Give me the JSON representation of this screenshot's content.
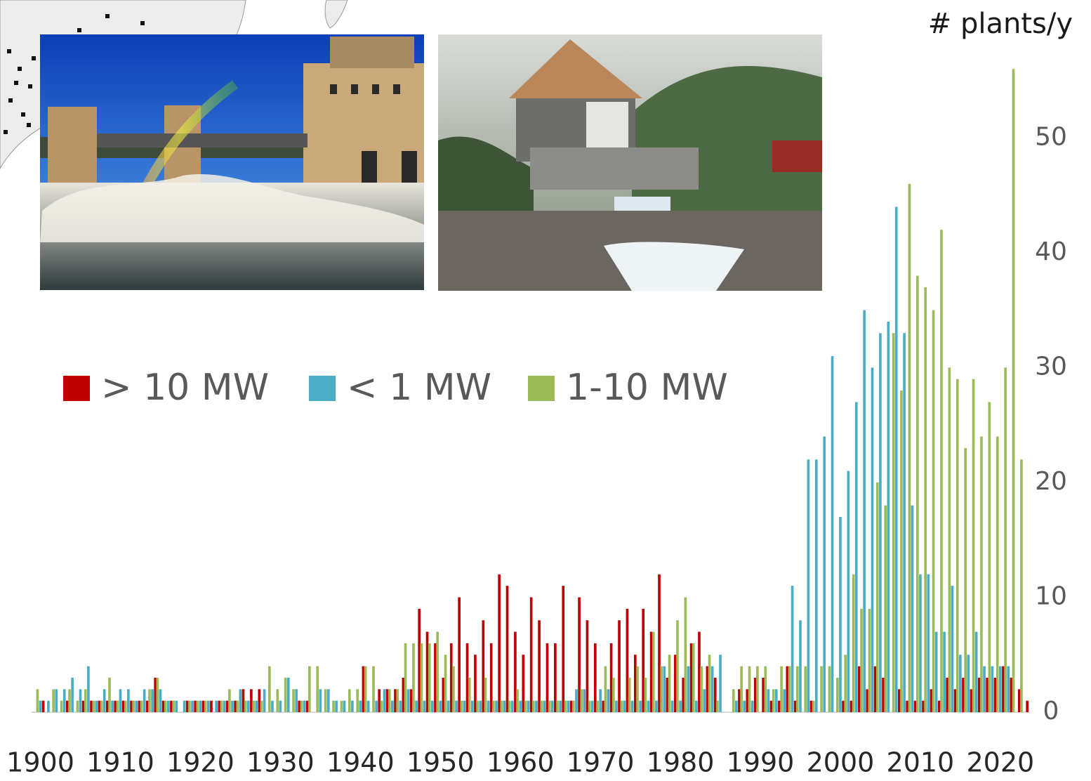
{
  "chart_data": {
    "type": "bar",
    "y_label": "# plants/y",
    "x": [
      1900,
      1901,
      1902,
      1903,
      1904,
      1905,
      1906,
      1907,
      1908,
      1909,
      1910,
      1911,
      1912,
      1913,
      1914,
      1915,
      1916,
      1917,
      1918,
      1919,
      1920,
      1921,
      1922,
      1923,
      1924,
      1925,
      1926,
      1927,
      1928,
      1929,
      1930,
      1931,
      1932,
      1933,
      1934,
      1935,
      1936,
      1937,
      1938,
      1939,
      1940,
      1941,
      1942,
      1943,
      1944,
      1945,
      1946,
      1947,
      1948,
      1949,
      1950,
      1951,
      1952,
      1953,
      1954,
      1955,
      1956,
      1957,
      1958,
      1959,
      1960,
      1961,
      1962,
      1963,
      1964,
      1965,
      1966,
      1967,
      1968,
      1969,
      1970,
      1971,
      1972,
      1973,
      1974,
      1975,
      1976,
      1977,
      1978,
      1979,
      1980,
      1981,
      1982,
      1983,
      1984,
      1985,
      1986,
      1987,
      1988,
      1989,
      1990,
      1991,
      1992,
      1993,
      1994,
      1995,
      1996,
      1997,
      1998,
      1999,
      2000,
      2001,
      2002,
      2003,
      2004,
      2005,
      2006,
      2007,
      2008,
      2009,
      2010,
      2011,
      2012,
      2013,
      2014,
      2015,
      2016,
      2017,
      2018,
      2019,
      2020,
      2021,
      2022,
      2023
    ],
    "series": [
      {
        "name": "> 10 MW",
        "color": "#c00000",
        "values": [
          1,
          0,
          0,
          1,
          0,
          1,
          1,
          1,
          1,
          1,
          1,
          1,
          1,
          1,
          3,
          1,
          1,
          0,
          1,
          1,
          1,
          1,
          1,
          1,
          1,
          2,
          2,
          2,
          0,
          0,
          0,
          0,
          1,
          1,
          0,
          0,
          0,
          0,
          0,
          0,
          4,
          0,
          2,
          2,
          2,
          3,
          2,
          9,
          7,
          6,
          3,
          6,
          10,
          6,
          5,
          8,
          6,
          12,
          11,
          7,
          5,
          10,
          8,
          6,
          6,
          11,
          1,
          10,
          8,
          6,
          1,
          6,
          8,
          9,
          5,
          9,
          7,
          12,
          3,
          5,
          3,
          6,
          7,
          4,
          3,
          0,
          0,
          2,
          2,
          3,
          3,
          1,
          1,
          4,
          1,
          0,
          1,
          0,
          0,
          0,
          1,
          1,
          4,
          2,
          4,
          3,
          0,
          2,
          1,
          1,
          1,
          2,
          1,
          3,
          2,
          3,
          2,
          3,
          3,
          3,
          4,
          3,
          2,
          1
        ]
      },
      {
        "name": "< 1 MW",
        "color": "#4bacc6",
        "values": [
          1,
          1,
          2,
          2,
          3,
          2,
          4,
          1,
          2,
          1,
          2,
          2,
          1,
          2,
          2,
          2,
          1,
          1,
          1,
          1,
          1,
          1,
          1,
          1,
          1,
          2,
          1,
          1,
          2,
          1,
          1,
          3,
          2,
          1,
          0,
          2,
          2,
          1,
          1,
          1,
          1,
          1,
          1,
          2,
          1,
          1,
          2,
          1,
          1,
          1,
          1,
          1,
          1,
          1,
          1,
          1,
          1,
          1,
          1,
          1,
          1,
          1,
          1,
          1,
          1,
          1,
          1,
          2,
          2,
          1,
          2,
          2,
          1,
          1,
          1,
          1,
          1,
          1,
          4,
          1,
          1,
          4,
          1,
          2,
          4,
          5,
          0,
          1,
          1,
          1,
          0,
          2,
          2,
          2,
          11,
          8,
          22,
          22,
          24,
          31,
          17,
          21,
          27,
          35,
          30,
          33,
          34,
          44,
          33,
          18,
          12,
          12,
          7,
          7,
          11,
          5,
          5,
          7,
          4,
          4,
          4,
          4,
          0,
          0
        ]
      },
      {
        "name": "1-10 MW",
        "color": "#9bbb59",
        "values": [
          2,
          0,
          2,
          1,
          2,
          1,
          2,
          1,
          1,
          3,
          1,
          1,
          1,
          1,
          2,
          3,
          1,
          1,
          0,
          1,
          1,
          1,
          0,
          1,
          2,
          1,
          1,
          1,
          1,
          4,
          2,
          3,
          2,
          1,
          4,
          4,
          2,
          1,
          1,
          2,
          2,
          4,
          4,
          1,
          2,
          2,
          6,
          6,
          6,
          6,
          7,
          5,
          4,
          1,
          3,
          1,
          3,
          1,
          1,
          1,
          2,
          1,
          1,
          1,
          1,
          1,
          1,
          1,
          2,
          1,
          1,
          4,
          3,
          1,
          3,
          4,
          3,
          7,
          4,
          5,
          8,
          10,
          6,
          4,
          5,
          1,
          0,
          2,
          4,
          4,
          4,
          4,
          2,
          4,
          4,
          4,
          4,
          1,
          4,
          4,
          3,
          5,
          12,
          9,
          9,
          20,
          18,
          33,
          28,
          46,
          38,
          37,
          35,
          42,
          30,
          29,
          23,
          29,
          24,
          27,
          24,
          30,
          56,
          22
        ]
      }
    ],
    "xlim": [
      1898.9,
      2023.7
    ],
    "xticks": [
      1900,
      1910,
      1920,
      1930,
      1940,
      1950,
      1960,
      1970,
      1980,
      1990,
      2000,
      2010,
      2020
    ],
    "ylim": [
      0,
      56.5
    ],
    "yticks": [
      0,
      10,
      20,
      30,
      40,
      50
    ],
    "y_axis_side": "right",
    "grid": false
  }
}
